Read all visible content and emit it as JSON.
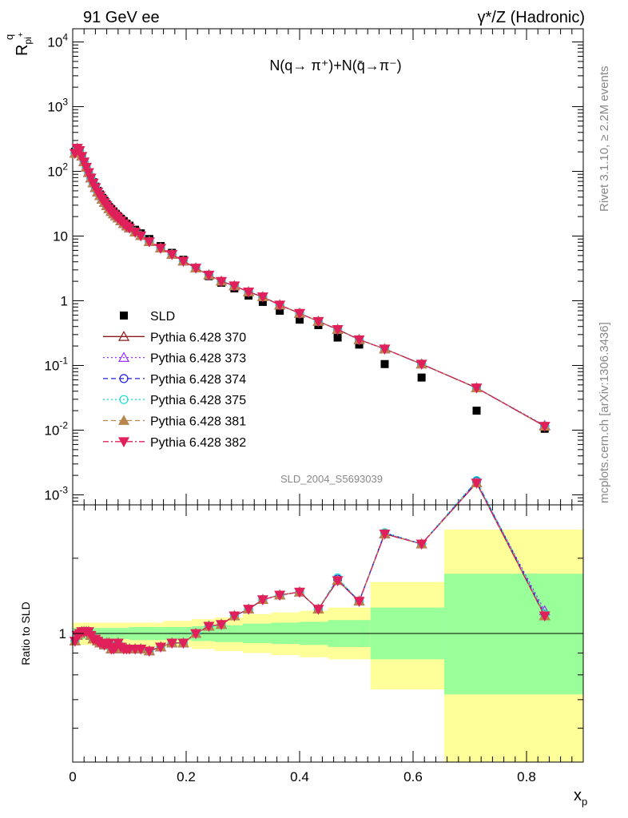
{
  "header": {
    "left": "91 GeV ee",
    "right": "γ*/Z (Hadronic)"
  },
  "side_labels": {
    "rivet": "Rivet 3.1.10, ≥ 2.2M events",
    "mcplots": "mcplots.cern.ch [arXiv:1306.3436]"
  },
  "analysis_id": "SLD_2004_S5693039",
  "colors": {
    "SLD": "#000000",
    "p370": "#8b1a1a",
    "p373": "#9b30ff",
    "p374": "#2020e0",
    "p375": "#18e0d0",
    "p381": "#b8864b",
    "p382": "#e0205a",
    "band_outer": "#ffff99",
    "band_inner": "#99ff99",
    "side_text": "#888888"
  },
  "chart_data": [
    {
      "type": "scatter",
      "panel": "main",
      "title": "N(q→ π⁺)+N(q̄→π⁻)",
      "ylabel": "R^q_pi+",
      "ylabel_main": "R",
      "ylabel_sup": "q",
      "ylabel_sub": "pi",
      "ylabel_subsup": "+",
      "yscale": "log",
      "xlim": [
        0,
        0.9
      ],
      "ylim": [
        0.0007,
        16000
      ],
      "ytick_labels": [
        "10⁻³",
        "10⁻²",
        "10⁻¹",
        "1",
        "10",
        "10²",
        "10³",
        "10⁴"
      ],
      "ytick_label_parts": [
        {
          "b": "10",
          "e": "-3"
        },
        {
          "b": "10",
          "e": "-2"
        },
        {
          "b": "10",
          "e": "-1"
        },
        {
          "b": "1",
          "e": ""
        },
        {
          "b": "10",
          "e": ""
        },
        {
          "b": "10",
          "e": "2"
        },
        {
          "b": "10",
          "e": "3"
        },
        {
          "b": "10",
          "e": "4"
        }
      ],
      "legend_position": "lower-left",
      "x": [
        0.004,
        0.008,
        0.012,
        0.016,
        0.02,
        0.024,
        0.028,
        0.032,
        0.036,
        0.04,
        0.044,
        0.048,
        0.052,
        0.056,
        0.06,
        0.064,
        0.068,
        0.072,
        0.076,
        0.08,
        0.085,
        0.09,
        0.095,
        0.1,
        0.11,
        0.12,
        0.135,
        0.155,
        0.175,
        0.195,
        0.217,
        0.24,
        0.262,
        0.285,
        0.31,
        0.335,
        0.365,
        0.4,
        0.433,
        0.467,
        0.505,
        0.55,
        0.615,
        0.712,
        0.832
      ],
      "series": [
        {
          "name": "SLD",
          "color_key": "SLD",
          "marker": "square",
          "values": [
            200,
            230,
            210,
            170,
            140,
            115,
            95,
            80,
            68,
            58,
            50,
            44,
            39,
            35,
            31,
            28,
            26,
            24,
            22,
            20,
            18.5,
            17,
            15.5,
            14.5,
            12.5,
            11,
            9,
            7,
            5.5,
            4.3,
            3.2,
            2.4,
            1.9,
            1.55,
            1.2,
            0.96,
            0.7,
            0.51,
            0.42,
            0.27,
            0.21,
            0.105,
            0.065,
            0.02,
            0.0105
          ]
        },
        {
          "name": "Pythia 6.428 370",
          "color_key": "p370",
          "marker": "triangle-open",
          "line": "solid",
          "values": [
            190,
            228,
            210,
            172,
            141,
            116,
            96,
            79,
            66,
            56,
            48,
            42,
            37,
            33,
            29.5,
            26.5,
            24,
            22,
            20.5,
            19,
            17.2,
            15.6,
            14.3,
            13.3,
            11.5,
            10.1,
            8.2,
            6.5,
            5.2,
            4.1,
            3.2,
            2.5,
            2.0,
            1.7,
            1.37,
            1.15,
            0.86,
            0.64,
            0.48,
            0.36,
            0.25,
            0.18,
            0.105,
            0.045,
            0.0115
          ]
        },
        {
          "name": "Pythia 6.428 373",
          "color_key": "p373",
          "marker": "triangle-open",
          "line": "dotted",
          "values": [
            191,
            229,
            211,
            172,
            141,
            116,
            96,
            79,
            66,
            56,
            48,
            42,
            37,
            33,
            29.5,
            26.5,
            24,
            22,
            20.5,
            19,
            17.2,
            15.6,
            14.3,
            13.3,
            11.5,
            10.1,
            8.2,
            6.5,
            5.2,
            4.1,
            3.2,
            2.5,
            2.0,
            1.7,
            1.37,
            1.15,
            0.86,
            0.64,
            0.48,
            0.36,
            0.25,
            0.18,
            0.105,
            0.045,
            0.0118
          ]
        },
        {
          "name": "Pythia 6.428 374",
          "color_key": "p374",
          "marker": "circle-open",
          "line": "dashed",
          "values": [
            190,
            228,
            210,
            171,
            140,
            116,
            96,
            79,
            66,
            56,
            48,
            42,
            37,
            33,
            29.5,
            26.5,
            24,
            22,
            20.5,
            19,
            17.2,
            15.6,
            14.3,
            13.3,
            11.5,
            10.1,
            8.2,
            6.5,
            5.2,
            4.1,
            3.2,
            2.5,
            2.0,
            1.7,
            1.37,
            1.15,
            0.86,
            0.64,
            0.48,
            0.36,
            0.25,
            0.18,
            0.105,
            0.045,
            0.0116
          ]
        },
        {
          "name": "Pythia 6.428 375",
          "color_key": "p375",
          "marker": "circle-open",
          "line": "dotted",
          "values": [
            190,
            228,
            210,
            171,
            140,
            116,
            96,
            79,
            66,
            56,
            48,
            42,
            37,
            33,
            29.5,
            26.5,
            24,
            22,
            20.5,
            19,
            17.2,
            15.6,
            14.3,
            13.3,
            11.5,
            10.1,
            8.2,
            6.5,
            5.2,
            4.1,
            3.2,
            2.5,
            2.0,
            1.7,
            1.37,
            1.15,
            0.86,
            0.64,
            0.48,
            0.36,
            0.25,
            0.18,
            0.105,
            0.045,
            0.0116
          ]
        },
        {
          "name": "Pythia 6.428 381",
          "color_key": "p381",
          "marker": "triangle-filled",
          "line": "dashed",
          "values": [
            189,
            227,
            209,
            171,
            140,
            115,
            95,
            79,
            66,
            56,
            48,
            42,
            37,
            33,
            29.5,
            26.5,
            24,
            22,
            20.5,
            19,
            17.2,
            15.6,
            14.3,
            13.3,
            11.5,
            10.1,
            8.2,
            6.5,
            5.2,
            4.1,
            3.2,
            2.5,
            2.0,
            1.7,
            1.37,
            1.15,
            0.86,
            0.64,
            0.48,
            0.36,
            0.25,
            0.18,
            0.105,
            0.045,
            0.0115
          ]
        },
        {
          "name": "Pythia 6.428 382",
          "color_key": "p382",
          "marker": "triangle-down-filled",
          "line": "dashdot",
          "values": [
            190,
            228,
            210,
            171,
            140,
            116,
            96,
            79,
            66,
            56,
            48,
            42,
            37,
            33,
            29.5,
            26.5,
            24,
            22,
            20.5,
            19,
            17.2,
            15.6,
            14.3,
            13.3,
            11.5,
            10.1,
            8.2,
            6.5,
            5.2,
            4.1,
            3.2,
            2.5,
            2.0,
            1.7,
            1.37,
            1.15,
            0.86,
            0.64,
            0.48,
            0.36,
            0.25,
            0.18,
            0.105,
            0.045,
            0.0115
          ]
        }
      ]
    },
    {
      "type": "line",
      "panel": "ratio",
      "ylabel": "Ratio to SLD",
      "xlabel": "x_p",
      "xlabel_main": "x",
      "xlabel_sub": "p",
      "yscale": "log",
      "xlim": [
        0,
        0.9
      ],
      "ylim": [
        0.5,
        2.0
      ],
      "xtick_values": [
        0,
        0.2,
        0.4,
        0.6,
        0.8
      ],
      "xtick_labels": [
        "0",
        "0.2",
        "0.4",
        "0.6",
        "0.8"
      ],
      "ytick_labels": [
        "1"
      ],
      "bands": [
        {
          "x0": 0.0,
          "x1": 0.1,
          "outer": [
            0.94,
            1.06
          ],
          "inner": [
            0.97,
            1.03
          ]
        },
        {
          "x0": 0.1,
          "x1": 0.16,
          "outer": [
            0.93,
            1.06
          ],
          "inner": [
            0.965,
            1.035
          ]
        },
        {
          "x0": 0.16,
          "x1": 0.21,
          "outer": [
            0.93,
            1.07
          ],
          "inner": [
            0.965,
            1.035
          ]
        },
        {
          "x0": 0.21,
          "x1": 0.25,
          "outer": [
            0.92,
            1.08
          ],
          "inner": [
            0.96,
            1.04
          ]
        },
        {
          "x0": 0.25,
          "x1": 0.3,
          "outer": [
            0.91,
            1.09
          ],
          "inner": [
            0.955,
            1.045
          ]
        },
        {
          "x0": 0.3,
          "x1": 0.35,
          "outer": [
            0.9,
            1.11
          ],
          "inner": [
            0.95,
            1.055
          ]
        },
        {
          "x0": 0.35,
          "x1": 0.4,
          "outer": [
            0.89,
            1.12
          ],
          "inner": [
            0.945,
            1.06
          ]
        },
        {
          "x0": 0.4,
          "x1": 0.45,
          "outer": [
            0.88,
            1.13
          ],
          "inner": [
            0.94,
            1.065
          ]
        },
        {
          "x0": 0.45,
          "x1": 0.525,
          "outer": [
            0.87,
            1.15
          ],
          "inner": [
            0.93,
            1.075
          ]
        },
        {
          "x0": 0.525,
          "x1": 0.655,
          "outer": [
            0.74,
            1.32
          ],
          "inner": [
            0.87,
            1.15
          ]
        },
        {
          "x0": 0.655,
          "x1": 0.9,
          "outer": [
            0.42,
            1.75
          ],
          "inner": [
            0.72,
            1.38
          ]
        }
      ],
      "series": [
        {
          "name": "Pythia 6.428 370",
          "color_key": "p370",
          "marker": "triangle-open",
          "line": "solid",
          "values": [
            0.96,
            0.99,
            1.0,
            1.01,
            1.01,
            1.01,
            1.01,
            0.99,
            0.97,
            0.97,
            0.96,
            0.95,
            0.95,
            0.94,
            0.95,
            0.95,
            0.92,
            0.92,
            0.93,
            0.95,
            0.93,
            0.92,
            0.92,
            0.92,
            0.92,
            0.92,
            0.91,
            0.93,
            0.95,
            0.95,
            1.0,
            1.04,
            1.05,
            1.1,
            1.14,
            1.2,
            1.23,
            1.25,
            1.14,
            1.33,
            1.19,
            1.71,
            1.62,
            2.25,
            1.1
          ]
        },
        {
          "name": "Pythia 6.428 373",
          "color_key": "p373",
          "marker": "triangle-open",
          "line": "dotted",
          "values": [
            0.96,
            0.99,
            1.0,
            1.01,
            1.01,
            1.01,
            1.01,
            0.99,
            0.97,
            0.97,
            0.96,
            0.95,
            0.95,
            0.94,
            0.95,
            0.95,
            0.92,
            0.92,
            0.93,
            0.95,
            0.93,
            0.92,
            0.92,
            0.92,
            0.92,
            0.92,
            0.91,
            0.93,
            0.95,
            0.95,
            1.0,
            1.04,
            1.05,
            1.1,
            1.14,
            1.2,
            1.23,
            1.25,
            1.14,
            1.33,
            1.19,
            1.71,
            1.62,
            2.25,
            1.13
          ]
        },
        {
          "name": "Pythia 6.428 374",
          "color_key": "p374",
          "marker": "circle-open",
          "line": "dashed",
          "values": [
            0.96,
            0.99,
            1.0,
            1.01,
            1.01,
            1.01,
            1.01,
            0.99,
            0.97,
            0.97,
            0.96,
            0.95,
            0.95,
            0.94,
            0.95,
            0.95,
            0.92,
            0.92,
            0.93,
            0.95,
            0.93,
            0.92,
            0.92,
            0.92,
            0.92,
            0.92,
            0.91,
            0.93,
            0.95,
            0.95,
            1.0,
            1.04,
            1.05,
            1.1,
            1.14,
            1.2,
            1.23,
            1.25,
            1.14,
            1.34,
            1.19,
            1.72,
            1.62,
            2.27,
            1.11
          ]
        },
        {
          "name": "Pythia 6.428 375",
          "color_key": "p375",
          "marker": "circle-open",
          "line": "dotted",
          "values": [
            0.96,
            0.99,
            1.0,
            1.01,
            1.01,
            1.01,
            1.01,
            0.99,
            0.97,
            0.97,
            0.96,
            0.95,
            0.95,
            0.94,
            0.95,
            0.95,
            0.92,
            0.92,
            0.93,
            0.95,
            0.93,
            0.92,
            0.92,
            0.92,
            0.92,
            0.92,
            0.91,
            0.93,
            0.95,
            0.95,
            1.0,
            1.04,
            1.05,
            1.1,
            1.14,
            1.2,
            1.23,
            1.25,
            1.14,
            1.35,
            1.19,
            1.72,
            1.62,
            2.28,
            1.11
          ]
        },
        {
          "name": "Pythia 6.428 381",
          "color_key": "p381",
          "marker": "triangle-filled",
          "line": "dashed",
          "values": [
            0.96,
            0.99,
            1.0,
            1.01,
            1.01,
            1.01,
            1.01,
            0.99,
            0.97,
            0.97,
            0.96,
            0.95,
            0.95,
            0.94,
            0.95,
            0.95,
            0.92,
            0.92,
            0.93,
            0.95,
            0.93,
            0.92,
            0.92,
            0.92,
            0.92,
            0.92,
            0.91,
            0.93,
            0.95,
            0.95,
            1.0,
            1.04,
            1.05,
            1.1,
            1.14,
            1.2,
            1.23,
            1.25,
            1.14,
            1.33,
            1.19,
            1.71,
            1.62,
            2.25,
            1.1
          ]
        },
        {
          "name": "Pythia 6.428 382",
          "color_key": "p382",
          "marker": "triangle-down-filled",
          "line": "dashdot",
          "values": [
            0.96,
            0.99,
            1.0,
            1.01,
            1.01,
            1.01,
            1.01,
            0.99,
            0.97,
            0.97,
            0.96,
            0.95,
            0.95,
            0.94,
            0.95,
            0.95,
            0.92,
            0.92,
            0.93,
            0.95,
            0.93,
            0.92,
            0.92,
            0.92,
            0.92,
            0.92,
            0.91,
            0.93,
            0.95,
            0.95,
            1.0,
            1.04,
            1.05,
            1.1,
            1.14,
            1.2,
            1.23,
            1.25,
            1.14,
            1.33,
            1.19,
            1.71,
            1.62,
            2.25,
            1.1
          ]
        }
      ]
    }
  ]
}
